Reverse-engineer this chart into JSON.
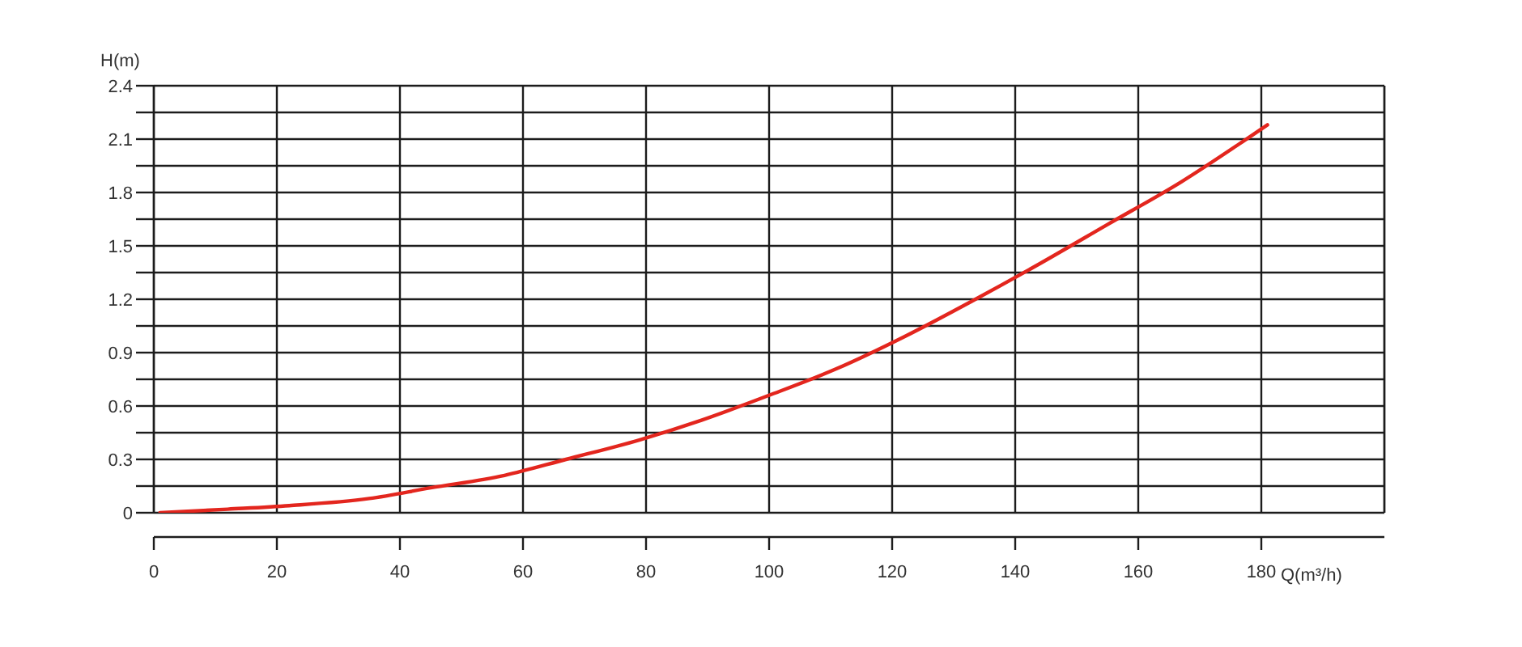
{
  "chart_data": {
    "type": "line",
    "xlabel": "Q(m³/h)",
    "ylabel": "H(m)",
    "x": [
      1,
      12,
      22,
      35,
      45,
      57,
      67,
      79,
      89,
      100,
      111,
      122,
      133,
      144,
      155,
      167,
      178,
      181
    ],
    "series": [
      {
        "color": "#e3261e",
        "values": [
          0,
          0.02,
          0.04,
          0.08,
          0.14,
          0.21,
          0.3,
          0.41,
          0.52,
          0.66,
          0.81,
          0.99,
          1.19,
          1.4,
          1.62,
          1.86,
          2.11,
          2.18
        ]
      }
    ],
    "xlim": [
      0,
      200
    ],
    "xticks": [
      0,
      20,
      40,
      60,
      80,
      100,
      120,
      140,
      160,
      180
    ],
    "ylim": [
      0,
      2.4
    ],
    "yticks": [
      0,
      {
        "value": 0.15,
        "label": null
      },
      0.3,
      {
        "value": 0.45,
        "label": null
      },
      0.6,
      {
        "value": 0.75,
        "label": null
      },
      0.9,
      {
        "value": 1.05,
        "label": null
      },
      1.2,
      {
        "value": 1.35,
        "label": null
      },
      1.5,
      {
        "value": 1.65,
        "label": null
      },
      1.8,
      {
        "value": 1.95,
        "label": null
      },
      2.1,
      {
        "value": 2.25,
        "label": null
      },
      2.4
    ],
    "grid": true,
    "marker": "none",
    "line_style": "solid"
  }
}
